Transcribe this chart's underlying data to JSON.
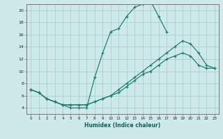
{
  "bg_color": "#cee9ea",
  "grid_color": "#aacfcf",
  "line_color": "#1a7a6e",
  "xlabel": "Humidex (Indice chaleur)",
  "xlim": [
    -0.5,
    23.5
  ],
  "ylim": [
    3,
    21
  ],
  "yticks": [
    4,
    6,
    8,
    10,
    12,
    14,
    16,
    18,
    20
  ],
  "xticks": [
    0,
    1,
    2,
    3,
    4,
    5,
    6,
    7,
    8,
    9,
    10,
    11,
    12,
    13,
    14,
    15,
    16,
    17,
    18,
    19,
    20,
    21,
    22,
    23
  ],
  "line1_x": [
    0,
    1,
    2,
    3,
    4,
    5,
    6,
    7,
    8,
    9,
    10,
    11,
    12,
    13,
    14,
    15,
    16,
    17
  ],
  "line1_y": [
    7,
    6.5,
    5.5,
    5.0,
    4.5,
    4.0,
    4.0,
    4.0,
    9.0,
    13.0,
    16.5,
    17.0,
    19.0,
    20.5,
    21.0,
    21.5,
    19.0,
    16.5
  ],
  "line2_x": [
    0,
    1,
    2,
    3,
    4,
    5,
    6,
    7,
    8,
    9,
    10,
    11,
    12,
    13,
    14,
    15,
    16,
    17,
    18,
    19,
    20,
    21,
    22,
    23
  ],
  "line2_y": [
    7,
    6.5,
    5.5,
    5.0,
    4.5,
    4.5,
    4.5,
    4.5,
    5.0,
    5.5,
    6.0,
    7.0,
    8.0,
    9.0,
    10.0,
    11.0,
    12.0,
    13.0,
    14.0,
    15.0,
    14.5,
    13.0,
    11.0,
    10.5
  ],
  "line3_x": [
    0,
    1,
    2,
    3,
    4,
    5,
    6,
    7,
    8,
    9,
    10,
    11,
    12,
    13,
    14,
    15,
    16,
    17,
    18,
    19,
    20,
    21,
    22,
    23
  ],
  "line3_y": [
    7,
    6.5,
    5.5,
    5.0,
    4.5,
    4.5,
    4.5,
    4.5,
    5.0,
    5.5,
    6.0,
    6.5,
    7.5,
    8.5,
    9.5,
    10.0,
    11.0,
    12.0,
    12.5,
    13.0,
    12.5,
    11.0,
    10.5,
    10.5
  ]
}
